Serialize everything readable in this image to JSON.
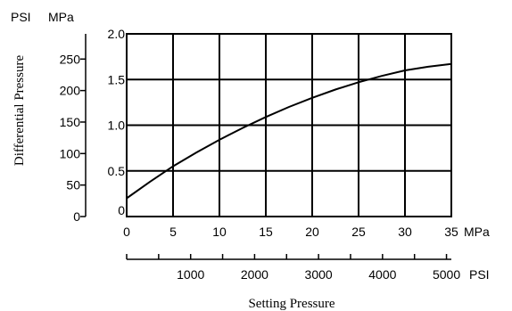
{
  "chart_data": {
    "type": "line",
    "xlabel": "Setting Pressure",
    "ylabel": "Differential Pressure",
    "x_unit_primary": "MPa",
    "x_unit_secondary": "PSI",
    "y_unit_primary": "MPa",
    "y_unit_secondary": "PSI",
    "xlim": [
      0,
      35
    ],
    "ylim": [
      0,
      2.0
    ],
    "x_ticks_mpa": [
      "0",
      "5",
      "10",
      "15",
      "20",
      "25",
      "30",
      "35"
    ],
    "x_ticks_psi": [
      "0",
      "1000",
      "2000",
      "3000",
      "4000",
      "5000"
    ],
    "y_ticks_mpa": [
      "0",
      "0.5",
      "1.0",
      "1.5",
      "2.0"
    ],
    "y_ticks_psi": [
      "0",
      "50",
      "100",
      "150",
      "200",
      "250"
    ],
    "grid": true,
    "x": [
      0,
      2.5,
      5,
      7.5,
      10,
      12.5,
      15,
      17.5,
      20,
      22.5,
      25,
      27.5,
      30,
      32.5,
      35
    ],
    "y": [
      0.2,
      0.38,
      0.55,
      0.7,
      0.84,
      0.97,
      1.09,
      1.2,
      1.3,
      1.39,
      1.47,
      1.54,
      1.6,
      1.64,
      1.67
    ]
  }
}
